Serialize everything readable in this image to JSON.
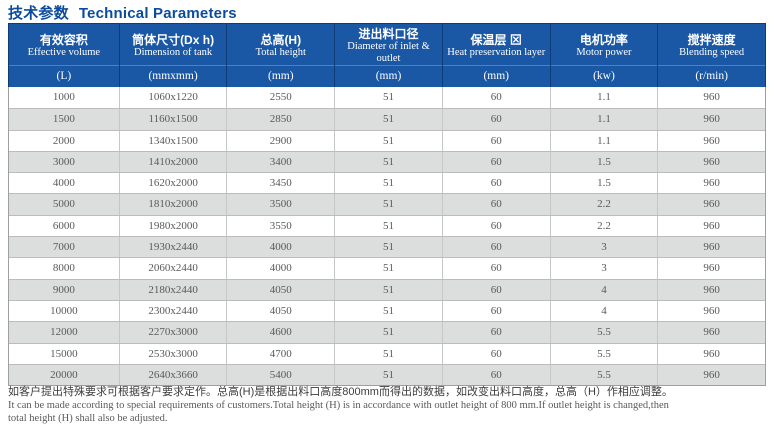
{
  "title": {
    "zh": "技术参数",
    "en": "Technical Parameters"
  },
  "table": {
    "columns": [
      {
        "zh": "有效容积",
        "en": "Effective volume",
        "unit": "(L)"
      },
      {
        "zh": "筒体尺寸(Dx h)",
        "en": "Dimension of tank",
        "unit": "(mmxmm)"
      },
      {
        "zh": "总高(H)",
        "en": "Total height",
        "unit": "(mm)"
      },
      {
        "zh": "进出料口径",
        "en": "Diameter of inlet & outlet",
        "unit": "(mm)"
      },
      {
        "zh": "保温层 ⊠",
        "en": "Heat preservation layer",
        "unit": "(mm)"
      },
      {
        "zh": "电机功率",
        "en": "Motor power",
        "unit": "(kw)"
      },
      {
        "zh": "搅拌速度",
        "en": "Blending speed",
        "unit": "(r/min)"
      }
    ],
    "rows": [
      [
        "1000",
        "1060x1220",
        "2550",
        "51",
        "60",
        "1.1",
        "960"
      ],
      [
        "1500",
        "1160x1500",
        "2850",
        "51",
        "60",
        "1.1",
        "960"
      ],
      [
        "2000",
        "1340x1500",
        "2900",
        "51",
        "60",
        "1.1",
        "960"
      ],
      [
        "3000",
        "1410x2000",
        "3400",
        "51",
        "60",
        "1.5",
        "960"
      ],
      [
        "4000",
        "1620x2000",
        "3450",
        "51",
        "60",
        "1.5",
        "960"
      ],
      [
        "5000",
        "1810x2000",
        "3500",
        "51",
        "60",
        "2.2",
        "960"
      ],
      [
        "6000",
        "1980x2000",
        "3550",
        "51",
        "60",
        "2.2",
        "960"
      ],
      [
        "7000",
        "1930x2440",
        "4000",
        "51",
        "60",
        "3",
        "960"
      ],
      [
        "8000",
        "2060x2440",
        "4000",
        "51",
        "60",
        "3",
        "960"
      ],
      [
        "9000",
        "2180x2440",
        "4050",
        "51",
        "60",
        "4",
        "960"
      ],
      [
        "10000",
        "2300x2440",
        "4050",
        "51",
        "60",
        "4",
        "960"
      ],
      [
        "12000",
        "2270x3000",
        "4600",
        "51",
        "60",
        "5.5",
        "960"
      ],
      [
        "15000",
        "2530x3000",
        "4700",
        "51",
        "60",
        "5.5",
        "960"
      ],
      [
        "20000",
        "2640x3660",
        "5400",
        "51",
        "60",
        "5.5",
        "960"
      ]
    ]
  },
  "notes": {
    "zh": "如客户提出特殊要求可根据客户要求定作。总高(H)是根据出料口高度800mm而得出的数据，如改变出料口高度，总高（H）作相应调整。",
    "en_line1": "It can be made according to special requirements of customers.Total height (H) is in accordance with outlet height of 800 mm.If outlet height is changed,then",
    "en_line2": "total height (H) shall also be adjusted."
  },
  "colors": {
    "title_blue": "#0b4c9e",
    "header_bg": "#1a57a5",
    "header_border": "#0d3c77",
    "header_divider": "#4d82c0",
    "row_alt_bg": "#dcdddd",
    "body_text": "#595a5c"
  }
}
